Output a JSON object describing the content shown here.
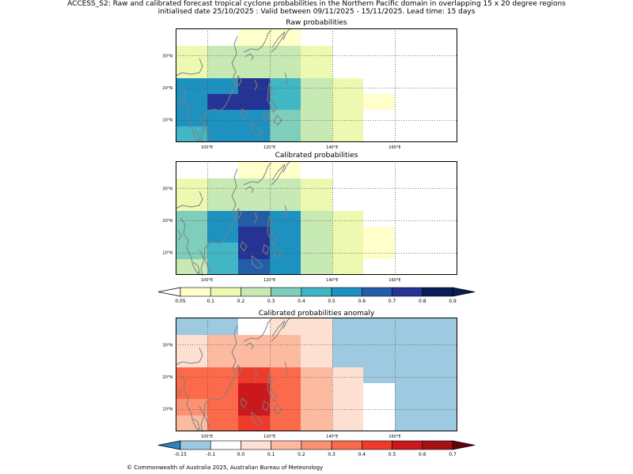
{
  "header": {
    "line1": "ACCESS_S2: Raw and calibrated forecast tropical cyclone probabilities in the Northern Pacific domain in overlapping 15 x 20 degree regions",
    "line2": "initialised date 25/10/2025 :  Valid between 09/11/2025 - 15/11/2025. Lead time: 15 days"
  },
  "footer": "© Commonwealth of Australia 2025, Australian Bureau of Meteorology",
  "chart_data": [
    {
      "type": "heatmap",
      "title": "Raw probabilities",
      "x_lon_edges": [
        90,
        100,
        110,
        120,
        130,
        140,
        150,
        160,
        170,
        180
      ],
      "y_lat_edges": [
        38,
        33,
        28,
        23,
        18,
        13,
        8,
        3
      ],
      "x_ticks": [
        "100°E",
        "120°E",
        "140°E",
        "160°E"
      ],
      "y_ticks": [
        "30°N",
        "20°N",
        "10°N"
      ],
      "values": [
        [
          0.0,
          0.0,
          0.05,
          0.05,
          0.0,
          0.0,
          0.0,
          0.0,
          0.0
        ],
        [
          0.1,
          0.2,
          0.2,
          0.2,
          0.1,
          0.0,
          0.0,
          0.0,
          0.0
        ],
        [
          0.1,
          0.2,
          0.2,
          0.2,
          0.1,
          0.0,
          0.0,
          0.0,
          0.0
        ],
        [
          0.5,
          0.5,
          0.7,
          0.4,
          0.2,
          0.1,
          0.0,
          0.0,
          0.0
        ],
        [
          0.5,
          0.7,
          0.7,
          0.4,
          0.2,
          0.1,
          0.05,
          0.0,
          0.0
        ],
        [
          0.5,
          0.5,
          0.5,
          0.3,
          0.2,
          0.1,
          0.0,
          0.0,
          0.0
        ],
        [
          0.4,
          0.5,
          0.5,
          0.3,
          0.2,
          0.1,
          0.0,
          0.0,
          0.0
        ]
      ]
    },
    {
      "type": "heatmap",
      "title": "Calibrated probabilities",
      "x_lon_edges": [
        90,
        100,
        110,
        120,
        130,
        140,
        150,
        160,
        170,
        180
      ],
      "y_lat_edges": [
        38,
        33,
        28,
        23,
        18,
        13,
        8,
        3
      ],
      "x_ticks": [
        "100°E",
        "120°E",
        "140°E",
        "160°E"
      ],
      "y_ticks": [
        "30°N",
        "20°N",
        "10°N"
      ],
      "values": [
        [
          0.0,
          0.0,
          0.05,
          0.05,
          0.0,
          0.0,
          0.0,
          0.0,
          0.0
        ],
        [
          0.1,
          0.2,
          0.2,
          0.2,
          0.1,
          0.0,
          0.0,
          0.0,
          0.0
        ],
        [
          0.1,
          0.2,
          0.2,
          0.2,
          0.1,
          0.0,
          0.0,
          0.0,
          0.0
        ],
        [
          0.3,
          0.5,
          0.6,
          0.5,
          0.2,
          0.1,
          0.0,
          0.0,
          0.0
        ],
        [
          0.3,
          0.5,
          0.7,
          0.5,
          0.2,
          0.1,
          0.05,
          0.0,
          0.0
        ],
        [
          0.3,
          0.4,
          0.7,
          0.5,
          0.2,
          0.1,
          0.05,
          0.0,
          0.0
        ],
        [
          0.2,
          0.4,
          0.6,
          0.5,
          0.2,
          0.1,
          0.0,
          0.0,
          0.0
        ]
      ]
    },
    {
      "type": "heatmap",
      "title": "Calibrated probabilities anomaly",
      "x_lon_edges": [
        90,
        100,
        110,
        120,
        130,
        140,
        150,
        160,
        170,
        180
      ],
      "y_lat_edges": [
        38,
        33,
        28,
        23,
        18,
        13,
        8,
        3
      ],
      "x_ticks": [
        "100°E",
        "120°E",
        "140°E",
        "160°E"
      ],
      "y_ticks": [
        "30°N",
        "20°N",
        "10°N"
      ],
      "values": [
        [
          -0.15,
          -0.15,
          -0.1,
          0.0,
          0.0,
          -0.15,
          -0.15,
          -0.15,
          -0.15
        ],
        [
          0.0,
          0.1,
          0.1,
          0.1,
          0.0,
          -0.15,
          -0.15,
          -0.15,
          -0.15
        ],
        [
          0.0,
          0.1,
          0.1,
          0.1,
          0.0,
          -0.15,
          -0.15,
          -0.15,
          -0.15
        ],
        [
          0.3,
          0.3,
          0.4,
          0.3,
          0.1,
          0.0,
          -0.15,
          -0.15,
          -0.15
        ],
        [
          0.3,
          0.3,
          0.5,
          0.3,
          0.1,
          0.0,
          -0.1,
          -0.15,
          -0.15
        ],
        [
          0.2,
          0.3,
          0.5,
          0.3,
          0.1,
          0.0,
          -0.1,
          -0.15,
          -0.15
        ],
        [
          0.1,
          0.3,
          0.4,
          0.3,
          0.1,
          0.0,
          -0.1,
          -0.15,
          -0.15
        ]
      ]
    }
  ],
  "colorbars": [
    {
      "ticks": [
        "0.05",
        "0.1",
        "0.2",
        "0.3",
        "0.4",
        "0.5",
        "0.6",
        "0.7",
        "0.8",
        "0.9"
      ],
      "colors": [
        "#ffffcc",
        "#edf8b1",
        "#c7e9b4",
        "#7fcdbb",
        "#41b6c4",
        "#1d91c0",
        "#225ea8",
        "#253494",
        "#081d58"
      ],
      "under": "#ffffff",
      "over": "#081d58"
    },
    {
      "ticks": [
        "-0.15",
        "-0.1",
        "0.0",
        "0.1",
        "0.2",
        "0.3",
        "0.4",
        "0.5",
        "0.6",
        "0.7"
      ],
      "colors": [
        "#9ecae1",
        "#ffffff",
        "#fee0d2",
        "#fcbba1",
        "#fc9272",
        "#fb6a4a",
        "#ef3b2c",
        "#cb181d",
        "#a50f15"
      ],
      "under": "#3182bd",
      "over": "#67000d"
    }
  ]
}
